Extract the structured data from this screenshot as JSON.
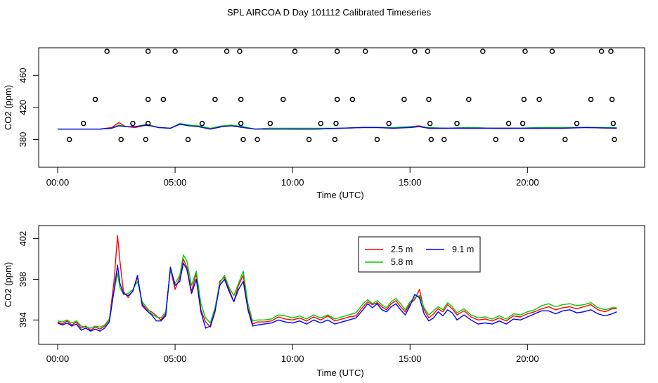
{
  "figure": {
    "title": "SPL AIRCOA D  Day 101112  Calibrated Timeseries"
  },
  "colors": {
    "red": "#ff0000",
    "green": "#00cc00",
    "blue": "#0000ff",
    "axis": "#000000"
  },
  "chart_data": [
    {
      "type": "line",
      "title": "",
      "xlabel": "Time (UTC)",
      "ylabel": "CO2 (ppm)",
      "xlim": [
        0,
        24
      ],
      "ylim": [
        355,
        490
      ],
      "x_ticks": [
        0,
        5,
        10,
        15,
        20
      ],
      "x_tick_labels": [
        "00:00",
        "05:00",
        "10:00",
        "15:00",
        "20:00"
      ],
      "y_ticks": [
        380,
        420,
        460
      ],
      "y_tick_labels": [
        "380",
        "420",
        "460"
      ],
      "series": [
        {
          "color": "red",
          "x": [
            0.0,
            1.2,
            1.8,
            2.3,
            2.6,
            2.9,
            3.3,
            3.8,
            4.3,
            4.8,
            5.2,
            5.6,
            6.0,
            6.5,
            7.0,
            7.4,
            7.9,
            8.4,
            9.0,
            10.0,
            11.0,
            12.0,
            13.0,
            13.6,
            14.3,
            15.0,
            15.4,
            15.8,
            16.5,
            17.5,
            18.5,
            19.5,
            20.5,
            21.5,
            22.5,
            23.8
          ],
          "y": [
            393,
            393,
            393,
            395,
            401,
            396,
            395,
            398,
            395,
            394,
            399,
            398,
            396,
            393,
            396,
            397,
            395,
            393,
            394,
            393,
            393,
            394,
            395,
            395,
            394,
            396,
            397,
            394,
            394,
            395,
            394,
            394,
            394,
            395,
            395,
            394
          ]
        },
        {
          "color": "green",
          "x": [
            0.0,
            1.2,
            1.8,
            2.3,
            2.6,
            2.9,
            3.3,
            3.8,
            4.3,
            4.8,
            5.2,
            5.6,
            6.0,
            6.5,
            7.0,
            7.4,
            7.9,
            8.4,
            9.0,
            10.0,
            11.0,
            12.0,
            13.0,
            13.6,
            14.3,
            15.0,
            15.4,
            15.8,
            16.5,
            17.5,
            18.5,
            19.5,
            20.5,
            21.5,
            22.5,
            23.8
          ],
          "y": [
            393,
            393,
            393,
            394,
            398,
            396,
            396,
            399,
            395,
            394,
            400,
            398,
            397,
            394,
            397,
            398,
            396,
            393,
            394,
            394,
            394,
            394,
            395,
            395,
            395,
            396,
            396,
            395,
            394,
            395,
            394,
            394,
            395,
            395,
            395,
            395
          ]
        },
        {
          "color": "blue",
          "x": [
            0.0,
            1.2,
            1.8,
            2.3,
            2.6,
            2.9,
            3.3,
            3.8,
            4.3,
            4.8,
            5.2,
            5.6,
            6.0,
            6.5,
            7.0,
            7.4,
            7.9,
            8.4,
            9.0,
            10.0,
            11.0,
            12.0,
            13.0,
            13.6,
            14.3,
            15.0,
            15.4,
            15.8,
            16.5,
            17.5,
            18.5,
            19.5,
            20.5,
            21.5,
            22.5,
            23.8
          ],
          "y": [
            393,
            393,
            393,
            394,
            397,
            396,
            396,
            398,
            395,
            394,
            399,
            397,
            396,
            393,
            396,
            397,
            395,
            393,
            393,
            393,
            393,
            394,
            395,
            395,
            394,
            395,
            396,
            394,
            394,
            394,
            394,
            394,
            394,
            394,
            395,
            394
          ]
        }
      ],
      "flag_points": {
        "marker": "open-circle",
        "x": [
          0.5,
          1.1,
          1.6,
          2.1,
          2.7,
          3.2,
          3.75,
          3.85,
          3.85,
          3.85,
          4.5,
          5.0,
          5.55,
          6.15,
          6.7,
          7.2,
          7.75,
          7.8,
          7.8,
          7.9,
          8.5,
          9.05,
          9.6,
          10.1,
          10.7,
          11.2,
          11.8,
          11.85,
          11.9,
          11.9,
          12.55,
          13.1,
          13.6,
          14.1,
          14.75,
          15.2,
          15.75,
          15.8,
          15.85,
          15.9,
          16.45,
          17.0,
          17.5,
          18.1,
          18.65,
          19.2,
          19.75,
          19.8,
          19.85,
          19.9,
          20.5,
          21.05,
          21.6,
          22.1,
          22.7,
          23.15,
          23.55,
          23.6,
          23.65,
          23.7
        ],
        "y": [
          380,
          400,
          430,
          490,
          380,
          400,
          380,
          400,
          430,
          490,
          430,
          490,
          380,
          400,
          430,
          490,
          490,
          430,
          400,
          380,
          380,
          400,
          430,
          490,
          380,
          400,
          380,
          400,
          430,
          490,
          430,
          490,
          380,
          400,
          430,
          490,
          490,
          430,
          400,
          380,
          380,
          400,
          430,
          490,
          380,
          400,
          380,
          400,
          430,
          490,
          430,
          490,
          380,
          400,
          430,
          490,
          490,
          430,
          400,
          380
        ]
      }
    },
    {
      "type": "line",
      "title": "",
      "xlabel": "Time (UTC)",
      "ylabel": "CO2 (ppm)",
      "xlim": [
        0,
        24
      ],
      "ylim": [
        392.5,
        402.8
      ],
      "x_ticks": [
        0,
        5,
        10,
        15,
        20
      ],
      "x_tick_labels": [
        "00:00",
        "05:00",
        "10:00",
        "15:00",
        "20:00"
      ],
      "y_ticks": [
        394,
        398,
        402
      ],
      "y_tick_labels": [
        "394",
        "398",
        "402"
      ],
      "legend": {
        "position": "top-center",
        "columns": 2
      },
      "series": [
        {
          "name": "2.5 m",
          "color": "red",
          "x": [
            0.0,
            0.2,
            0.4,
            0.6,
            0.8,
            1.0,
            1.2,
            1.4,
            1.6,
            1.8,
            2.0,
            2.2,
            2.4,
            2.55,
            2.65,
            2.8,
            3.0,
            3.2,
            3.4,
            3.6,
            3.8,
            4.0,
            4.2,
            4.4,
            4.6,
            4.8,
            5.0,
            5.2,
            5.35,
            5.5,
            5.7,
            5.9,
            6.1,
            6.3,
            6.5,
            6.7,
            6.9,
            7.1,
            7.3,
            7.5,
            7.7,
            7.9,
            8.1,
            8.3,
            8.5,
            8.8,
            9.1,
            9.4,
            9.7,
            10.0,
            10.3,
            10.6,
            10.9,
            11.2,
            11.5,
            11.8,
            12.1,
            12.4,
            12.7,
            13.0,
            13.2,
            13.4,
            13.6,
            13.8,
            14.0,
            14.2,
            14.4,
            14.6,
            14.8,
            15.0,
            15.2,
            15.4,
            15.6,
            15.8,
            16.0,
            16.2,
            16.4,
            16.6,
            16.8,
            17.0,
            17.3,
            17.6,
            17.9,
            18.2,
            18.5,
            18.8,
            19.1,
            19.4,
            19.7,
            20.0,
            20.3,
            20.6,
            20.9,
            21.2,
            21.5,
            21.8,
            22.1,
            22.4,
            22.7,
            23.0,
            23.3,
            23.6,
            23.8
          ],
          "y": [
            393.8,
            393.6,
            393.9,
            393.5,
            393.8,
            393.2,
            393.4,
            393.0,
            393.3,
            393.1,
            393.4,
            394.0,
            397.8,
            402.3,
            399.8,
            396.8,
            396.2,
            396.9,
            398.2,
            395.6,
            395.0,
            394.8,
            394.4,
            394.0,
            394.6,
            399.0,
            397.0,
            398.2,
            400.0,
            399.2,
            396.8,
            398.6,
            395.0,
            393.8,
            393.3,
            394.8,
            397.8,
            398.2,
            397.0,
            395.8,
            397.4,
            398.4,
            395.2,
            393.6,
            393.8,
            393.8,
            393.9,
            394.3,
            394.1,
            394.0,
            394.2,
            393.9,
            394.3,
            394.0,
            394.4,
            393.9,
            394.1,
            394.3,
            394.4,
            395.3,
            395.8,
            395.5,
            395.7,
            395.3,
            395.0,
            395.6,
            395.9,
            395.3,
            394.8,
            395.6,
            396.0,
            397.0,
            395.0,
            394.2,
            394.6,
            395.1,
            394.8,
            395.5,
            395.1,
            394.5,
            394.9,
            394.3,
            394.0,
            394.1,
            393.9,
            394.2,
            393.9,
            394.4,
            394.3,
            394.6,
            394.8,
            395.1,
            395.3,
            395.0,
            395.2,
            395.3,
            395.1,
            395.3,
            395.5,
            395.0,
            394.8,
            395.1,
            395.1
          ]
        },
        {
          "name": "5.8 m",
          "color": "green",
          "x": [
            0.0,
            0.2,
            0.4,
            0.6,
            0.8,
            1.0,
            1.2,
            1.4,
            1.6,
            1.8,
            2.0,
            2.2,
            2.4,
            2.55,
            2.65,
            2.8,
            3.0,
            3.2,
            3.4,
            3.6,
            3.8,
            4.0,
            4.2,
            4.4,
            4.6,
            4.8,
            5.0,
            5.2,
            5.35,
            5.5,
            5.7,
            5.9,
            6.1,
            6.3,
            6.5,
            6.7,
            6.9,
            7.1,
            7.3,
            7.5,
            7.7,
            7.9,
            8.1,
            8.3,
            8.5,
            8.8,
            9.1,
            9.4,
            9.7,
            10.0,
            10.3,
            10.6,
            10.9,
            11.2,
            11.5,
            11.8,
            12.1,
            12.4,
            12.7,
            13.0,
            13.2,
            13.4,
            13.6,
            13.8,
            14.0,
            14.2,
            14.4,
            14.6,
            14.8,
            15.0,
            15.2,
            15.4,
            15.6,
            15.8,
            16.0,
            16.2,
            16.4,
            16.6,
            16.8,
            17.0,
            17.3,
            17.6,
            17.9,
            18.2,
            18.5,
            18.8,
            19.1,
            19.4,
            19.7,
            20.0,
            20.3,
            20.6,
            20.9,
            21.2,
            21.5,
            21.8,
            22.1,
            22.4,
            22.7,
            23.0,
            23.3,
            23.6,
            23.8
          ],
          "y": [
            393.9,
            393.8,
            394.0,
            393.7,
            393.9,
            393.4,
            393.3,
            393.2,
            393.4,
            393.3,
            393.5,
            394.1,
            396.8,
            398.6,
            397.2,
            396.5,
            396.6,
            397.0,
            397.8,
            395.8,
            395.2,
            394.6,
            394.3,
            394.2,
            394.8,
            398.9,
            397.6,
            398.4,
            400.4,
            399.8,
            397.4,
            398.8,
            395.6,
            394.2,
            393.7,
            395.2,
            397.6,
            398.4,
            397.2,
            396.4,
            397.6,
            398.8,
            395.6,
            393.9,
            394.0,
            394.0,
            394.1,
            394.5,
            394.4,
            394.2,
            394.4,
            394.1,
            394.5,
            394.2,
            394.5,
            394.1,
            394.3,
            394.5,
            394.7,
            395.6,
            396.0,
            395.6,
            395.9,
            395.5,
            395.2,
            395.8,
            396.1,
            395.6,
            395.0,
            395.8,
            396.2,
            396.4,
            395.2,
            394.5,
            394.9,
            395.3,
            395.0,
            395.7,
            395.3,
            394.7,
            395.1,
            394.5,
            394.2,
            394.3,
            394.1,
            394.4,
            394.1,
            394.6,
            394.5,
            394.8,
            395.0,
            395.4,
            395.6,
            395.3,
            395.5,
            395.6,
            395.4,
            395.5,
            395.7,
            395.2,
            395.0,
            395.2,
            395.2
          ]
        },
        {
          "name": "9.1 m",
          "color": "blue",
          "x": [
            0.0,
            0.2,
            0.4,
            0.6,
            0.8,
            1.0,
            1.2,
            1.4,
            1.6,
            1.8,
            2.0,
            2.2,
            2.4,
            2.55,
            2.65,
            2.8,
            3.0,
            3.2,
            3.4,
            3.6,
            3.8,
            4.0,
            4.2,
            4.4,
            4.6,
            4.8,
            5.0,
            5.2,
            5.35,
            5.5,
            5.7,
            5.9,
            6.1,
            6.3,
            6.5,
            6.7,
            6.9,
            7.1,
            7.3,
            7.5,
            7.7,
            7.9,
            8.1,
            8.3,
            8.5,
            8.8,
            9.1,
            9.4,
            9.7,
            10.0,
            10.3,
            10.6,
            10.9,
            11.2,
            11.5,
            11.8,
            12.1,
            12.4,
            12.7,
            13.0,
            13.2,
            13.4,
            13.6,
            13.8,
            14.0,
            14.2,
            14.4,
            14.6,
            14.8,
            15.0,
            15.2,
            15.4,
            15.6,
            15.8,
            16.0,
            16.2,
            16.4,
            16.6,
            16.8,
            17.0,
            17.3,
            17.6,
            17.9,
            18.2,
            18.5,
            18.8,
            19.1,
            19.4,
            19.7,
            20.0,
            20.3,
            20.6,
            20.9,
            21.2,
            21.5,
            21.8,
            22.1,
            22.4,
            22.7,
            23.0,
            23.3,
            23.6,
            23.8
          ],
          "y": [
            393.7,
            393.5,
            393.7,
            393.4,
            393.6,
            393.0,
            393.2,
            392.9,
            393.1,
            392.9,
            393.2,
            393.8,
            396.9,
            399.4,
            397.6,
            396.6,
            396.4,
            396.8,
            398.4,
            395.4,
            394.9,
            394.5,
            393.9,
            393.9,
            394.4,
            399.2,
            397.4,
            397.8,
            399.6,
            399.0,
            396.6,
            398.0,
            394.8,
            393.2,
            393.4,
            394.9,
            397.4,
            398.0,
            396.8,
            395.8,
            397.0,
            397.8,
            395.0,
            393.4,
            393.5,
            393.6,
            393.7,
            394.0,
            393.8,
            393.7,
            393.9,
            393.6,
            394.0,
            393.7,
            394.0,
            393.6,
            393.8,
            394.0,
            394.2,
            395.0,
            395.6,
            395.2,
            395.6,
            395.0,
            394.8,
            395.3,
            395.6,
            395.0,
            394.5,
            395.4,
            396.5,
            396.2,
            394.6,
            393.9,
            394.2,
            394.8,
            394.4,
            395.0,
            394.7,
            394.0,
            394.5,
            394.0,
            393.6,
            393.7,
            393.6,
            393.9,
            393.6,
            394.1,
            394.0,
            394.3,
            394.6,
            394.9,
            394.9,
            394.6,
            394.9,
            395.0,
            394.7,
            394.8,
            395.0,
            394.6,
            394.4,
            394.6,
            394.8
          ]
        }
      ]
    }
  ]
}
